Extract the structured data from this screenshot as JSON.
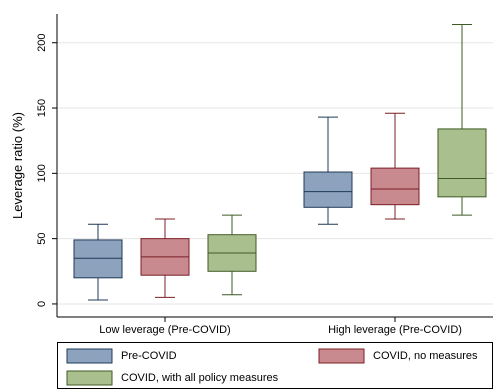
{
  "chart_data": {
    "type": "boxplot",
    "title": "",
    "xlabel": "",
    "ylabel": "Leverage ratio (%)",
    "ylim": [
      -10,
      222
    ],
    "yticks": [
      0,
      50,
      100,
      150,
      200
    ],
    "grid": "horizontal",
    "legend_position": "bottom",
    "categories": [
      "Low leverage (Pre-COVID)",
      "High leverage (Pre-COVID)"
    ],
    "series": [
      {
        "name": "Pre-COVID",
        "color": "#8da3bd",
        "stroke": "#1f3a57",
        "boxes": [
          {
            "whisker_low": 3,
            "q1": 20,
            "median": 35,
            "q3": 49,
            "whisker_high": 61
          },
          {
            "whisker_low": 61,
            "q1": 74,
            "median": 86,
            "q3": 101,
            "whisker_high": 143
          }
        ]
      },
      {
        "name": "COVID, no measures",
        "color": "#c98a8f",
        "stroke": "#7a1f26",
        "boxes": [
          {
            "whisker_low": 5,
            "q1": 22,
            "median": 36,
            "q3": 50,
            "whisker_high": 65
          },
          {
            "whisker_low": 65,
            "q1": 76,
            "median": 88,
            "q3": 104,
            "whisker_high": 146
          }
        ]
      },
      {
        "name": "COVID, with all policy measures",
        "color": "#a9c08e",
        "stroke": "#3e5a26",
        "boxes": [
          {
            "whisker_low": 7,
            "q1": 25,
            "median": 39,
            "q3": 53,
            "whisker_high": 68
          },
          {
            "whisker_low": 68,
            "q1": 82,
            "median": 96,
            "q3": 134,
            "whisker_high": 214
          }
        ]
      }
    ]
  }
}
